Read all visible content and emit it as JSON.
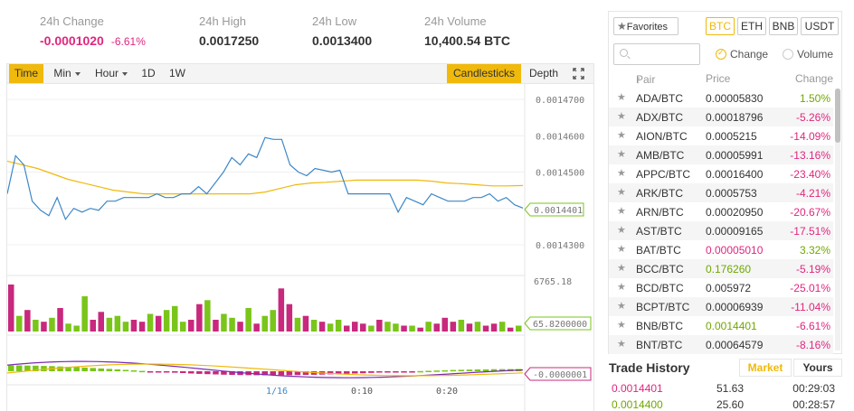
{
  "stats": {
    "change": {
      "label": "24h Change",
      "value": "-0.0001020",
      "percent": "-6.61%"
    },
    "high": {
      "label": "24h High",
      "value": "0.0017250"
    },
    "low": {
      "label": "24h Low",
      "value": "0.0013400"
    },
    "volume": {
      "label": "24h Volume",
      "value": "10,400.54 BTC"
    }
  },
  "toolbar": {
    "time": "Time",
    "min": "Min",
    "hour": "Hour",
    "d1": "1D",
    "w1": "1W",
    "candlesticks": "Candlesticks",
    "depth": "Depth",
    "expand_icon": "expand-icon"
  },
  "chart": {
    "price_ticks": [
      "0.0014700",
      "0.0014600",
      "0.0014500",
      "0.0014400",
      "0.0014300"
    ],
    "current_price_label": "0.0014401",
    "volume_max_label": "6765.18",
    "volume_current_label": "65.8200000",
    "macd_current_label": "-0.0000001",
    "time_labels": [
      "1/16",
      "0:10",
      "0:20"
    ],
    "colors": {
      "price_line": "#3d87c8",
      "ma_line": "#f0b90b",
      "vol_up": "#7ac51a",
      "vol_down": "#c8287d",
      "macd_line": "#7a2bb0",
      "signal_line": "#f0b90b",
      "accent": "#f0b90b"
    }
  },
  "chart_data": {
    "type": "line",
    "price": [
      0.001444,
      0.0014545,
      0.001452,
      0.001442,
      0.0014395,
      0.001438,
      0.001443,
      0.001437,
      0.00144,
      0.001439,
      0.00144,
      0.0014395,
      0.001442,
      0.001442,
      0.001443,
      0.001443,
      0.001443,
      0.001443,
      0.001444,
      0.001443,
      0.001443,
      0.001444,
      0.001444,
      0.001446,
      0.001444,
      0.001447,
      0.00145,
      0.001454,
      0.001452,
      0.001455,
      0.001454,
      0.0014595,
      0.001459,
      0.001459,
      0.001452,
      0.00145,
      0.001449,
      0.001451,
      0.0014505,
      0.00145,
      0.0014505,
      0.001444,
      0.001444,
      0.001444,
      0.001444,
      0.001444,
      0.001444,
      0.001439,
      0.001443,
      0.001442,
      0.001441,
      0.001444,
      0.001443,
      0.001442,
      0.001442,
      0.001442,
      0.001443,
      0.001443,
      0.001444,
      0.001442,
      0.001443,
      0.001441,
      0.0014401
    ],
    "ma": [
      0.001453,
      0.001452,
      0.001451,
      0.0014495,
      0.001448,
      0.001447,
      0.001446,
      0.001445,
      0.0014445,
      0.001444,
      0.001444,
      0.001444,
      0.001444,
      0.001444,
      0.001444,
      0.001444,
      0.001444,
      0.0014445,
      0.0014455,
      0.0014465,
      0.001447,
      0.0014472,
      0.0014475,
      0.0014478,
      0.0014478,
      0.0014478,
      0.0014478,
      0.0014478,
      0.0014475,
      0.001447,
      0.0014468,
      0.0014465,
      0.0014462,
      0.0014462,
      0.0014463
    ],
    "volume": [
      120,
      40,
      55,
      30,
      25,
      35,
      60,
      20,
      15,
      90,
      30,
      50,
      35,
      40,
      25,
      30,
      25,
      45,
      40,
      55,
      65,
      25,
      30,
      70,
      80,
      30,
      45,
      35,
      25,
      60,
      20,
      40,
      55,
      110,
      70,
      35,
      40,
      30,
      25,
      20,
      30,
      15,
      25,
      20,
      15,
      30,
      25,
      20,
      15,
      15,
      10,
      25,
      20,
      35,
      25,
      30,
      20,
      25,
      15,
      20,
      25,
      10,
      15
    ],
    "volume_up": [
      false,
      true,
      false,
      true,
      false,
      true,
      false,
      true,
      true,
      true,
      false,
      false,
      true,
      true,
      true,
      false,
      false,
      true,
      false,
      true,
      true,
      true,
      false,
      false,
      true,
      false,
      true,
      true,
      false,
      true,
      false,
      true,
      true,
      false,
      false,
      true,
      false,
      true,
      false,
      true,
      true,
      false,
      false,
      false,
      true,
      false,
      true,
      true,
      false,
      true,
      false,
      true,
      false,
      false,
      false,
      true,
      false,
      true,
      false,
      false,
      true,
      false,
      true
    ],
    "xlabel": "",
    "ylabel": ""
  },
  "market": {
    "favorites": "Favorites",
    "currencies": [
      "BTC",
      "ETH",
      "BNB",
      "USDT"
    ],
    "active_currency": "BTC",
    "radio_change": "Change",
    "radio_volume": "Volume",
    "headers": {
      "pair": "Pair",
      "price": "Price",
      "change": "Change"
    },
    "rows": [
      {
        "pair": "ADA/BTC",
        "price": "0.00005830",
        "change": "1.50%",
        "up": true,
        "price_color": ""
      },
      {
        "pair": "ADX/BTC",
        "price": "0.00018796",
        "change": "-5.26%",
        "up": false,
        "price_color": ""
      },
      {
        "pair": "AION/BTC",
        "price": "0.0005215",
        "change": "-14.09%",
        "up": false,
        "price_color": ""
      },
      {
        "pair": "AMB/BTC",
        "price": "0.00005991",
        "change": "-13.16%",
        "up": false,
        "price_color": ""
      },
      {
        "pair": "APPC/BTC",
        "price": "0.00016400",
        "change": "-23.40%",
        "up": false,
        "price_color": ""
      },
      {
        "pair": "ARK/BTC",
        "price": "0.0005753",
        "change": "-4.21%",
        "up": false,
        "price_color": ""
      },
      {
        "pair": "ARN/BTC",
        "price": "0.00020950",
        "change": "-20.67%",
        "up": false,
        "price_color": ""
      },
      {
        "pair": "AST/BTC",
        "price": "0.00009165",
        "change": "-17.51%",
        "up": false,
        "price_color": ""
      },
      {
        "pair": "BAT/BTC",
        "price": "0.00005010",
        "change": "3.32%",
        "up": true,
        "price_color": "down"
      },
      {
        "pair": "BCC/BTC",
        "price": "0.176260",
        "change": "-5.19%",
        "up": false,
        "price_color": "up"
      },
      {
        "pair": "BCD/BTC",
        "price": "0.005972",
        "change": "-25.01%",
        "up": false,
        "price_color": ""
      },
      {
        "pair": "BCPT/BTC",
        "price": "0.00006939",
        "change": "-11.04%",
        "up": false,
        "price_color": ""
      },
      {
        "pair": "BNB/BTC",
        "price": "0.0014401",
        "change": "-6.61%",
        "up": false,
        "price_color": "up"
      },
      {
        "pair": "BNT/BTC",
        "price": "0.00064579",
        "change": "-8.16%",
        "up": false,
        "price_color": ""
      }
    ]
  },
  "trade_history": {
    "title": "Trade History",
    "tab_market": "Market",
    "tab_yours": "Yours",
    "rows": [
      {
        "price": "0.0014401",
        "amount": "51.63",
        "time": "00:29:03",
        "up": false
      },
      {
        "price": "0.0014400",
        "amount": "25.60",
        "time": "00:28:57",
        "up": true
      }
    ]
  }
}
